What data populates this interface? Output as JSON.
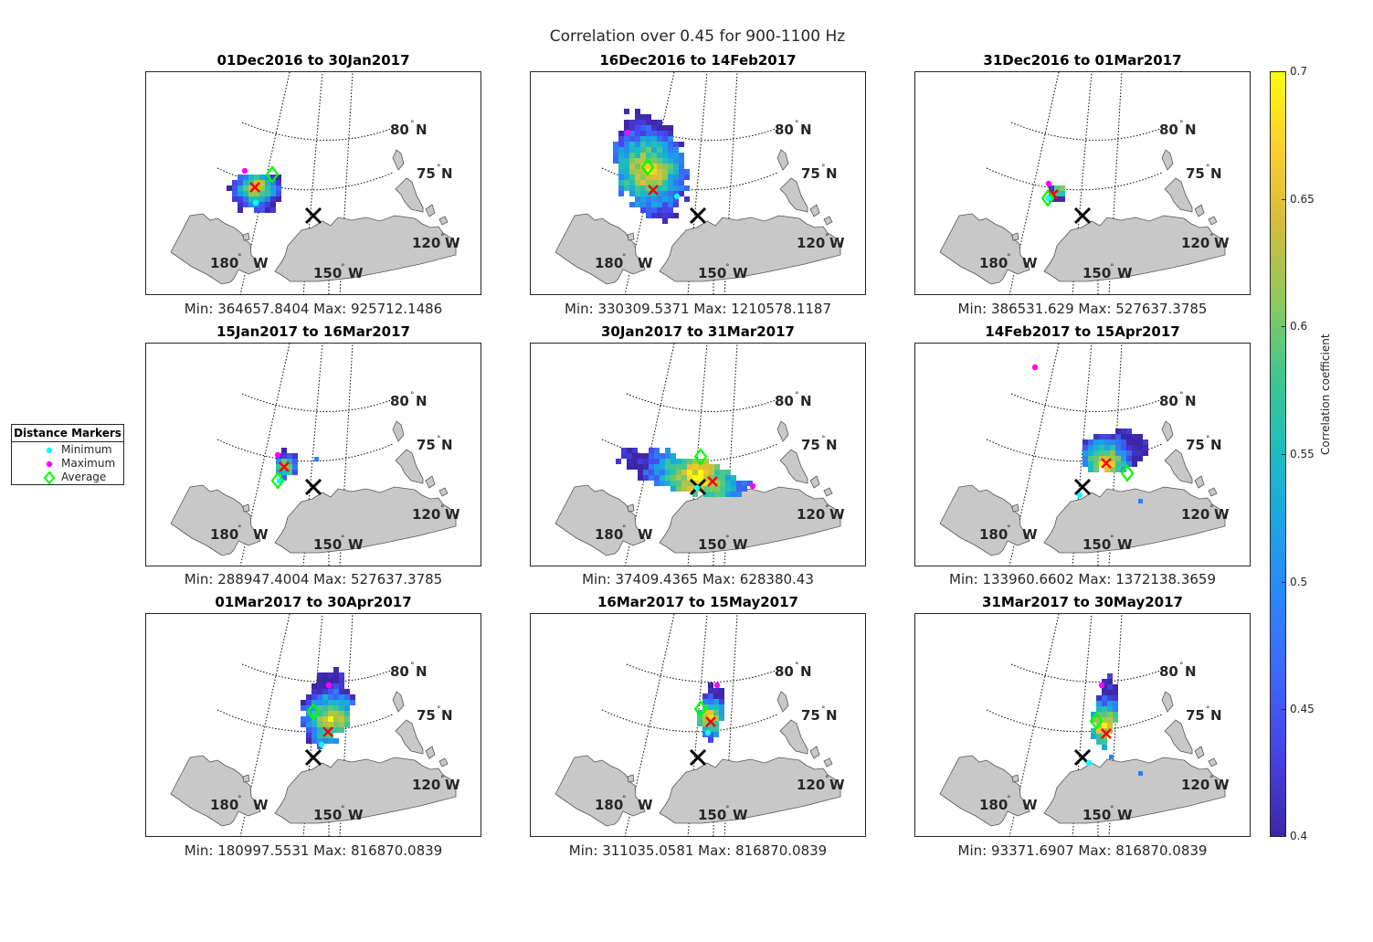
{
  "figure": {
    "title": "Correlation over 0.45 for 900-1100 Hz"
  },
  "legend": {
    "title": "Distance Markers",
    "items": [
      {
        "label": "Minimum",
        "color": "#00ffff",
        "symbol": "dot"
      },
      {
        "label": "Maximum",
        "color": "#ff00ff",
        "symbol": "dot"
      },
      {
        "label": "Average",
        "color": "#00ff00",
        "symbol": "diamond"
      }
    ]
  },
  "colorbar": {
    "label": "Correlation coefficient",
    "ticks": [
      "0.7",
      "0.65",
      "0.6",
      "0.55",
      "0.5",
      "0.45",
      "0.4"
    ],
    "range": [
      0.4,
      0.7
    ]
  },
  "map_labels": {
    "lat80": "80",
    "lat75": "75",
    "lon120": "120",
    "lon150": "150",
    "lon180": "180",
    "north": "N",
    "west": "W"
  },
  "chart_data": [
    {
      "type": "heatmap",
      "title": "01Dec2016 to 30Jan2017",
      "stats": "Min: 364657.8404 Max: 925712.1486"
    },
    {
      "type": "heatmap",
      "title": "16Dec2016 to 14Feb2017",
      "stats": "Min: 330309.5371 Max: 1210578.1187"
    },
    {
      "type": "heatmap",
      "title": "31Dec2016 to 01Mar2017",
      "stats": "Min: 386531.629 Max: 527637.3785"
    },
    {
      "type": "heatmap",
      "title": "15Jan2017 to 16Mar2017",
      "stats": "Min: 288947.4004 Max: 527637.3785"
    },
    {
      "type": "heatmap",
      "title": "30Jan2017 to 31Mar2017",
      "stats": "Min: 37409.4365 Max: 628380.43"
    },
    {
      "type": "heatmap",
      "title": "14Feb2017 to 15Apr2017",
      "stats": "Min: 133960.6602 Max: 1372138.3659"
    },
    {
      "type": "heatmap",
      "title": "01Mar2017 to 30Apr2017",
      "stats": "Min: 180997.5531 Max: 816870.0839"
    },
    {
      "type": "heatmap",
      "title": "16Mar2017 to 15May2017",
      "stats": "Min: 311035.0581 Max: 816870.0839"
    },
    {
      "type": "heatmap",
      "title": "31Mar2017 to 30May2017",
      "stats": "Min: 93371.6907 Max: 816870.0839"
    }
  ]
}
